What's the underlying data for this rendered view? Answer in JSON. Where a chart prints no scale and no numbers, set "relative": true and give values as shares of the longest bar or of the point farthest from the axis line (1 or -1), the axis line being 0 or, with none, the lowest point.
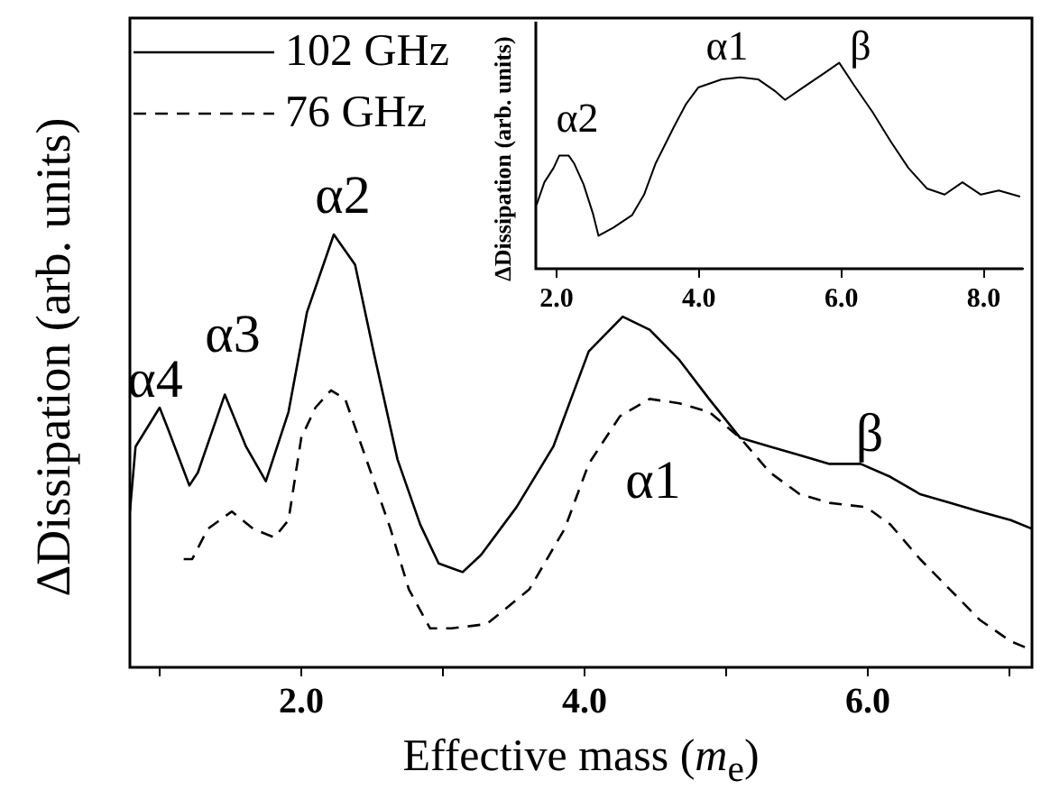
{
  "chart_data": [
    {
      "type": "line",
      "relative": true,
      "xlabel": "Effective mass (m$_{e}$)",
      "ylabel": "ΔDissipation (arb. units)",
      "xlim": [
        0.79,
        7.16
      ],
      "xticks": [
        {
          "value": 1,
          "label": null
        },
        {
          "value": 2,
          "label": "2.0"
        },
        {
          "value": 3,
          "label": null
        },
        {
          "value": 4,
          "label": "4.0"
        },
        {
          "value": 5,
          "label": null
        },
        {
          "value": 6,
          "label": "6.0"
        },
        {
          "value": 7,
          "label": null
        }
      ],
      "tick_labels": "x",
      "legend": "top left",
      "marker": "none",
      "series": [
        {
          "name": "102 GHz",
          "color": "#000000",
          "line_style": "solid",
          "x": [
            0.79,
            0.83,
            1.0,
            1.06,
            1.21,
            1.27,
            1.46,
            1.61,
            1.75,
            1.91,
            2.04,
            2.23,
            2.38,
            2.51,
            2.68,
            2.84,
            2.97,
            3.14,
            3.27,
            3.52,
            3.78,
            4.03,
            4.27,
            4.46,
            4.67,
            4.88,
            5.1,
            5.31,
            5.52,
            5.73,
            5.95,
            6.16,
            6.37,
            6.58,
            6.79,
            7.01,
            7.16
          ],
          "values": [
            0.36,
            0.51,
            0.6,
            0.55,
            0.42,
            0.45,
            0.63,
            0.51,
            0.43,
            0.59,
            0.82,
            1.0,
            0.93,
            0.73,
            0.48,
            0.33,
            0.24,
            0.22,
            0.26,
            0.37,
            0.51,
            0.73,
            0.81,
            0.78,
            0.71,
            0.62,
            0.53,
            0.51,
            0.49,
            0.47,
            0.47,
            0.44,
            0.4,
            0.38,
            0.36,
            0.34,
            0.32
          ]
        },
        {
          "name": "76 GHz",
          "color": "#000000",
          "line_style": "dashed",
          "x": [
            1.17,
            1.23,
            1.34,
            1.51,
            1.66,
            1.81,
            1.91,
            2.0,
            2.1,
            2.21,
            2.31,
            2.46,
            2.63,
            2.76,
            2.91,
            3.06,
            3.31,
            3.61,
            3.86,
            4.03,
            4.25,
            4.46,
            4.67,
            4.88,
            5.1,
            5.31,
            5.52,
            5.73,
            5.99,
            6.16,
            6.37,
            6.58,
            6.79,
            7.01,
            7.16
          ],
          "values": [
            0.25,
            0.25,
            0.32,
            0.36,
            0.32,
            0.3,
            0.34,
            0.53,
            0.6,
            0.64,
            0.62,
            0.48,
            0.32,
            0.18,
            0.09,
            0.09,
            0.1,
            0.18,
            0.32,
            0.47,
            0.58,
            0.62,
            0.61,
            0.59,
            0.53,
            0.45,
            0.4,
            0.38,
            0.37,
            0.33,
            0.25,
            0.18,
            0.11,
            0.06,
            0.04
          ]
        }
      ],
      "annotations": [
        "α4",
        "α3",
        "α2",
        "α1",
        "β"
      ]
    },
    {
      "type": "line",
      "relative": true,
      "ylabel": "ΔDissipation (arb. units)",
      "xlim": [
        1.71,
        8.55
      ],
      "xticks": [
        {
          "value": 2,
          "label": "2.0"
        },
        {
          "value": 4,
          "label": "4.0"
        },
        {
          "value": 6,
          "label": "6.0"
        },
        {
          "value": 8,
          "label": "8.0"
        }
      ],
      "tick_labels": "x",
      "marker": "none",
      "series": [
        {
          "color": "#000000",
          "line_style": "solid",
          "x": [
            1.72,
            1.83,
            1.96,
            2.04,
            2.17,
            2.25,
            2.38,
            2.51,
            2.59,
            2.8,
            3.06,
            3.23,
            3.39,
            3.65,
            3.82,
            3.99,
            4.32,
            4.58,
            4.83,
            5.08,
            5.21,
            5.46,
            5.76,
            5.97,
            6.18,
            6.44,
            6.69,
            6.94,
            7.2,
            7.45,
            7.7,
            7.96,
            8.21,
            8.51
          ],
          "values": [
            0.31,
            0.42,
            0.49,
            0.55,
            0.55,
            0.51,
            0.41,
            0.27,
            0.16,
            0.2,
            0.26,
            0.36,
            0.51,
            0.69,
            0.8,
            0.88,
            0.92,
            0.93,
            0.92,
            0.86,
            0.82,
            0.88,
            0.95,
            1.0,
            0.89,
            0.76,
            0.62,
            0.49,
            0.39,
            0.36,
            0.42,
            0.36,
            0.38,
            0.35
          ]
        }
      ],
      "annotations": [
        "α2",
        "α1",
        "β"
      ]
    }
  ]
}
